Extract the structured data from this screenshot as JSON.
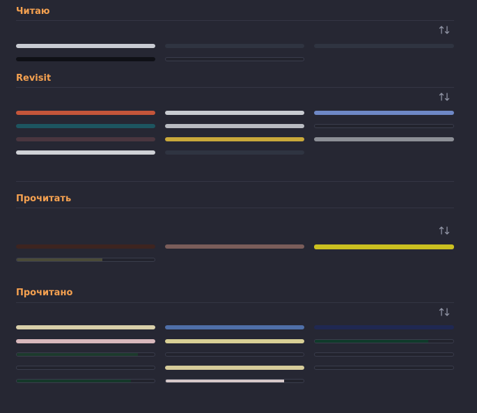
{
  "colors": {
    "background": "#262733",
    "heading": "#f5a150",
    "rule": "#343644",
    "sort_icon": "#8f93a3"
  },
  "sections": [
    {
      "title": "Читаю",
      "sort_icon": "sort-arrows-icon",
      "items": [
        {
          "color": "#c9ccd3",
          "progress": 1
        },
        {
          "color": "#2f3441",
          "progress": 1
        },
        {
          "color": "#2f3441",
          "progress": 1
        },
        {
          "color": "#0f1016",
          "progress": 1
        },
        {
          "color": "#22232d",
          "progress": 0
        }
      ]
    },
    {
      "title": "Revisit",
      "sort_icon": "sort-arrows-icon",
      "items": [
        {
          "color": "#c4553a",
          "progress": 1
        },
        {
          "color": "#c8cbd1",
          "progress": 1
        },
        {
          "color": "#6e88c6",
          "progress": 1
        },
        {
          "color": "#1d5560",
          "progress": 1
        },
        {
          "color": "#b9bcc2",
          "progress": 1
        },
        {
          "color": "#22232d",
          "progress": 0
        },
        {
          "color": "#4a363f",
          "progress": 1
        },
        {
          "color": "#c9a93b",
          "progress": 1
        },
        {
          "color": "#8c8f96",
          "progress": 1
        },
        {
          "color": "#cfd1d6",
          "progress": 1
        },
        {
          "color": "#2f3441",
          "progress": 1
        }
      ]
    },
    {
      "title": "Прочитать",
      "sort_icon": "sort-arrows-icon",
      "items": [
        {
          "color": "#3d2420",
          "progress": 1
        },
        {
          "color": "#7a5d5a",
          "progress": 1
        },
        {
          "color": "#cbc020",
          "progress": 1
        },
        {
          "color": "#4a4a38",
          "progress": 0.62
        }
      ]
    },
    {
      "title": "Прочитано",
      "sort_icon": "sort-arrows-icon",
      "items": [
        {
          "color": "#d8cfaa",
          "progress": 1
        },
        {
          "color": "#4f6fa8",
          "progress": 1
        },
        {
          "color": "#1f2852",
          "progress": 1
        },
        {
          "color": "#d8b8bc",
          "progress": 1
        },
        {
          "color": "#d8cf95",
          "progress": 1
        },
        {
          "color": "#0f3a2a",
          "progress": 0.82
        },
        {
          "color": "#1c3a2c",
          "progress": 0.88
        },
        {
          "color": "#22232d",
          "progress": 0
        },
        {
          "color": "#22232d",
          "progress": 0
        },
        {
          "color": "#22232d",
          "progress": 0
        },
        {
          "color": "#d6cc9a",
          "progress": 1
        },
        {
          "color": "#22232d",
          "progress": 0
        },
        {
          "color": "#15382a",
          "progress": 0.83
        },
        {
          "color": "#d6c8c9",
          "progress": 0.86
        }
      ]
    }
  ]
}
